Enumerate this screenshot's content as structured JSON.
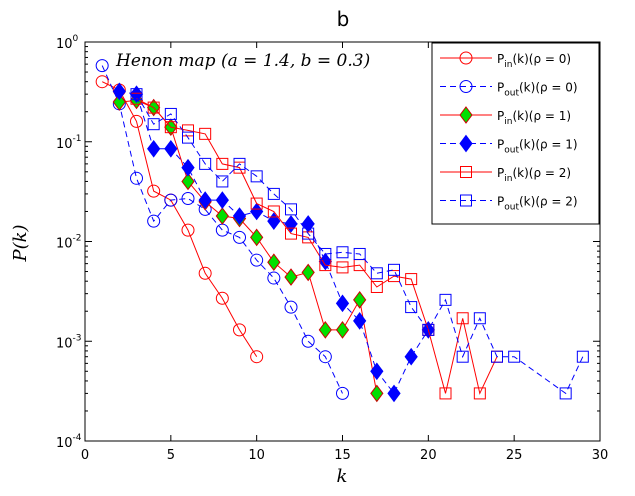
{
  "chart_data": {
    "type": "line",
    "title": "b",
    "xlabel": "k",
    "ylabel": "P(k)",
    "xlim": [
      0,
      30
    ],
    "ylim": [
      0.0001,
      1
    ],
    "yscale": "log",
    "grid": false,
    "legend_position": "top-right",
    "annotation": "Henon map (a = 1.4, b = 0.3)",
    "xticks": [
      "0",
      "5",
      "10",
      "15",
      "20",
      "25",
      "30"
    ],
    "yticks": [
      {
        "base": "10",
        "exp": "0",
        "value": 1
      },
      {
        "base": "10",
        "exp": "-1",
        "value": 0.1
      },
      {
        "base": "10",
        "exp": "-2",
        "value": 0.01
      },
      {
        "base": "10",
        "exp": "-3",
        "value": 0.001
      },
      {
        "base": "10",
        "exp": "-4",
        "value": 0.0001
      }
    ],
    "series": [
      {
        "name": "P_in(k)(ρ = 0)",
        "prefix": "P",
        "sub": "in",
        "suffix": "(k)(ρ = 0)",
        "color": "#ff0000",
        "marker": "circle",
        "dash": "solid",
        "fill": "none",
        "x": [
          1,
          2,
          3,
          4,
          5,
          6,
          7,
          8,
          9,
          10
        ],
        "y": [
          0.4,
          0.33,
          0.16,
          0.032,
          0.026,
          0.013,
          0.0048,
          0.0027,
          0.0013,
          0.0007
        ]
      },
      {
        "name": "P_out(k)(ρ = 0)",
        "prefix": "P",
        "sub": "out",
        "suffix": "(k)(ρ = 0)",
        "color": "#0000ff",
        "marker": "circle",
        "dash": "dashed",
        "fill": "none",
        "x": [
          1,
          2,
          3,
          4,
          5,
          6,
          7,
          8,
          9,
          10,
          11,
          12,
          13,
          14,
          15
        ],
        "y": [
          0.58,
          0.24,
          0.043,
          0.016,
          0.026,
          0.027,
          0.021,
          0.013,
          0.011,
          0.0065,
          0.0043,
          0.0022,
          0.001,
          0.0007,
          0.0003
        ]
      },
      {
        "name": "P_in(k)(ρ = 1)",
        "prefix": "P",
        "sub": "in",
        "suffix": "(k)(ρ = 1)",
        "color": "#00cc00",
        "marker": "diamond",
        "dash": "solid",
        "fill": "#00e000",
        "x": [
          2,
          3,
          4,
          5,
          6,
          7,
          8,
          9,
          10,
          11,
          12,
          13,
          14,
          15,
          16,
          17
        ],
        "y": [
          0.25,
          0.26,
          0.22,
          0.14,
          0.04,
          0.025,
          0.018,
          0.017,
          0.011,
          0.0062,
          0.0044,
          0.0049,
          0.0013,
          0.0013,
          0.0026,
          0.0003
        ]
      },
      {
        "name": "P_out(k)(ρ = 1)",
        "prefix": "P",
        "sub": "out",
        "suffix": "(k)(ρ = 1)",
        "color": "#0000ff",
        "marker": "diamond",
        "dash": "dashed",
        "fill": "#0000ff",
        "x": [
          2,
          3,
          4,
          5,
          6,
          7,
          8,
          9,
          10,
          11,
          12,
          13,
          14,
          15,
          16,
          17,
          18,
          19,
          20
        ],
        "y": [
          0.32,
          0.3,
          0.085,
          0.085,
          0.055,
          0.026,
          0.026,
          0.018,
          0.02,
          0.016,
          0.015,
          0.015,
          0.0063,
          0.0024,
          0.0016,
          0.0005,
          0.0003,
          0.0007,
          0.0013
        ]
      },
      {
        "name": "P_in(k)(ρ = 2)",
        "prefix": "P",
        "sub": "in",
        "suffix": "(k)(ρ = 2)",
        "color": "#ff0000",
        "marker": "square",
        "dash": "solid",
        "fill": "none",
        "x": [
          3,
          4,
          5,
          6,
          7,
          8,
          9,
          10,
          11,
          12,
          13,
          14,
          15,
          16,
          17,
          18,
          19,
          20,
          21,
          22,
          23,
          24
        ],
        "y": [
          0.27,
          0.22,
          0.14,
          0.13,
          0.12,
          0.06,
          0.055,
          0.024,
          0.02,
          0.012,
          0.011,
          0.0058,
          0.0055,
          0.0058,
          0.0035,
          0.0045,
          0.0042,
          0.0013,
          0.0003,
          0.0017,
          0.0003,
          0.0007
        ]
      },
      {
        "name": "P_out(k)(ρ = 2)",
        "prefix": "P",
        "sub": "out",
        "suffix": "(k)(ρ = 2)",
        "color": "#0000ff",
        "marker": "square",
        "dash": "dashed",
        "fill": "none",
        "x": [
          3,
          4,
          5,
          6,
          7,
          8,
          9,
          10,
          11,
          12,
          13,
          14,
          15,
          16,
          17,
          18,
          19,
          20,
          21,
          22,
          23,
          24,
          25,
          28,
          29
        ],
        "y": [
          0.3,
          0.15,
          0.19,
          0.11,
          0.06,
          0.04,
          0.06,
          0.045,
          0.03,
          0.021,
          0.012,
          0.0075,
          0.0078,
          0.0075,
          0.0048,
          0.0052,
          0.0022,
          0.0013,
          0.0026,
          0.0007,
          0.0017,
          0.0007,
          0.0007,
          0.0003,
          0.0007
        ]
      }
    ]
  }
}
